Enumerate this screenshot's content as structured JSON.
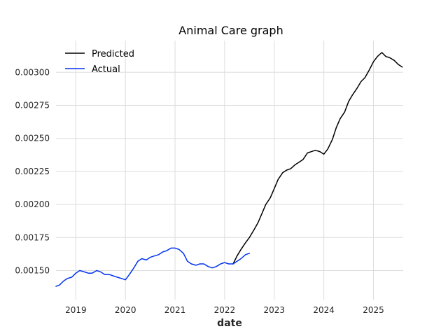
{
  "chart_data": {
    "type": "line",
    "title": "Animal Care graph",
    "xlabel": "date",
    "ylabel": "",
    "grid": true,
    "legend_position": "top-left",
    "xlim": [
      2018.6,
      2025.6
    ],
    "ylim": [
      0.00128,
      0.00324
    ],
    "x_ticks": [
      {
        "value": 2019,
        "label": "2019"
      },
      {
        "value": 2020,
        "label": "2020"
      },
      {
        "value": 2021,
        "label": "2021"
      },
      {
        "value": 2022,
        "label": "2022"
      },
      {
        "value": 2023,
        "label": "2023"
      },
      {
        "value": 2024,
        "label": "2024"
      },
      {
        "value": 2025,
        "label": "2025"
      }
    ],
    "y_ticks": [
      {
        "value": 0.0015,
        "label": "0.00150"
      },
      {
        "value": 0.00175,
        "label": "0.00175"
      },
      {
        "value": 0.002,
        "label": "0.00200"
      },
      {
        "value": 0.00225,
        "label": "0.00225"
      },
      {
        "value": 0.0025,
        "label": "0.00250"
      },
      {
        "value": 0.00275,
        "label": "0.00275"
      },
      {
        "value": 0.003,
        "label": "0.00300"
      }
    ],
    "series": [
      {
        "name": "Predicted",
        "color": "#000000",
        "x": [
          2022.17,
          2022.25,
          2022.33,
          2022.42,
          2022.5,
          2022.58,
          2022.67,
          2022.75,
          2022.83,
          2022.92,
          2023.0,
          2023.08,
          2023.17,
          2023.25,
          2023.33,
          2023.42,
          2023.5,
          2023.58,
          2023.67,
          2023.75,
          2023.83,
          2023.92,
          2024.0,
          2024.08,
          2024.17,
          2024.25,
          2024.33,
          2024.42,
          2024.5,
          2024.58,
          2024.67,
          2024.75,
          2024.83,
          2024.92,
          2025.0,
          2025.08,
          2025.17,
          2025.25,
          2025.33,
          2025.42,
          2025.5,
          2025.58
        ],
        "y": [
          0.00155,
          0.00161,
          0.00166,
          0.00171,
          0.00175,
          0.0018,
          0.00186,
          0.00193,
          0.002,
          0.00205,
          0.00212,
          0.00219,
          0.00224,
          0.00226,
          0.00227,
          0.0023,
          0.00232,
          0.00234,
          0.00239,
          0.0024,
          0.00241,
          0.0024,
          0.00238,
          0.00242,
          0.00249,
          0.00258,
          0.00265,
          0.0027,
          0.00278,
          0.00283,
          0.00288,
          0.00293,
          0.00296,
          0.00302,
          0.00308,
          0.00312,
          0.00315,
          0.00312,
          0.00311,
          0.00309,
          0.00306,
          0.00304
        ]
      },
      {
        "name": "Actual",
        "color": "#0033ee",
        "x": [
          2018.6,
          2018.67,
          2018.75,
          2018.83,
          2018.92,
          2019.0,
          2019.08,
          2019.17,
          2019.25,
          2019.33,
          2019.42,
          2019.5,
          2019.58,
          2019.67,
          2019.75,
          2019.83,
          2019.92,
          2020.0,
          2020.08,
          2020.17,
          2020.25,
          2020.33,
          2020.42,
          2020.5,
          2020.58,
          2020.67,
          2020.75,
          2020.83,
          2020.92,
          2021.0,
          2021.08,
          2021.17,
          2021.25,
          2021.33,
          2021.42,
          2021.5,
          2021.58,
          2021.67,
          2021.75,
          2021.83,
          2021.92,
          2022.0,
          2022.08,
          2022.17,
          2022.25,
          2022.33,
          2022.42,
          2022.5
        ],
        "y": [
          0.00138,
          0.00139,
          0.00142,
          0.00144,
          0.00145,
          0.00148,
          0.0015,
          0.00149,
          0.00148,
          0.00148,
          0.0015,
          0.00149,
          0.00147,
          0.00147,
          0.00146,
          0.00145,
          0.00144,
          0.00143,
          0.00147,
          0.00152,
          0.00157,
          0.00159,
          0.00158,
          0.0016,
          0.00161,
          0.00162,
          0.00164,
          0.00165,
          0.00167,
          0.00167,
          0.00166,
          0.00163,
          0.00157,
          0.00155,
          0.00154,
          0.00155,
          0.00155,
          0.00153,
          0.00152,
          0.00153,
          0.00155,
          0.00156,
          0.00155,
          0.00155,
          0.00157,
          0.00159,
          0.00162,
          0.00163
        ]
      }
    ]
  }
}
